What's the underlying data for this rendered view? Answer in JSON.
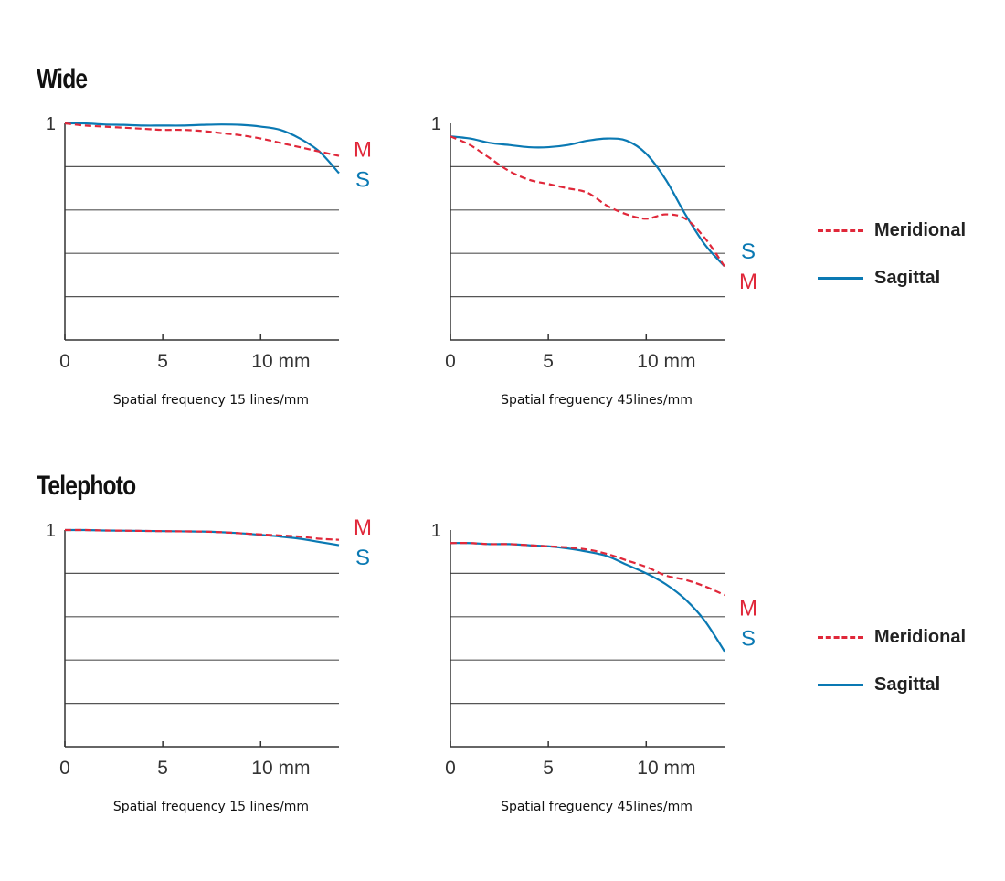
{
  "sections": [
    {
      "title": "Wide"
    },
    {
      "title": "Telephoto"
    }
  ],
  "legend": {
    "meridional": {
      "label": "Meridional",
      "color": "#e0283a",
      "style": "dashed"
    },
    "sagittal": {
      "label": "Sagittal",
      "color": "#0a79b3",
      "style": "solid"
    }
  },
  "chart_data": [
    {
      "type": "line",
      "group": "Wide",
      "caption": "Spatial frequency 15 lines/mm",
      "x_ticks": [
        "0",
        "5",
        "10 mm"
      ],
      "x_tick_values": [
        0,
        5,
        10
      ],
      "y_tick_label": "1",
      "xlim": [
        0,
        14
      ],
      "ylim": [
        0,
        1
      ],
      "grid_y": [
        0.2,
        0.4,
        0.6,
        0.8
      ],
      "series": [
        {
          "name": "M",
          "line": "dashed",
          "color": "#e0283a",
          "x": [
            0,
            1,
            2,
            3,
            4,
            5,
            6,
            7,
            8,
            9,
            10,
            11,
            12,
            13,
            14
          ],
          "y": [
            1.0,
            0.99,
            0.985,
            0.98,
            0.975,
            0.97,
            0.97,
            0.965,
            0.955,
            0.945,
            0.93,
            0.91,
            0.89,
            0.87,
            0.85
          ]
        },
        {
          "name": "S",
          "line": "solid",
          "color": "#0a79b3",
          "x": [
            0,
            1,
            2,
            3,
            4,
            5,
            6,
            7,
            8,
            9,
            10,
            11,
            12,
            13,
            14
          ],
          "y": [
            1.0,
            1.0,
            0.995,
            0.993,
            0.99,
            0.99,
            0.99,
            0.993,
            0.995,
            0.993,
            0.985,
            0.97,
            0.93,
            0.87,
            0.77
          ]
        }
      ],
      "end_labels": [
        {
          "text": "M",
          "color": "#e0283a"
        },
        {
          "text": "S",
          "color": "#0a79b3"
        }
      ]
    },
    {
      "type": "line",
      "group": "Wide",
      "caption": "Spatial freguency 45lines/mm",
      "x_ticks": [
        "0",
        "5",
        "10 mm"
      ],
      "x_tick_values": [
        0,
        5,
        10
      ],
      "y_tick_label": "1",
      "xlim": [
        0,
        14
      ],
      "ylim": [
        0,
        1
      ],
      "grid_y": [
        0.2,
        0.4,
        0.6,
        0.8
      ],
      "series": [
        {
          "name": "M",
          "line": "dashed",
          "color": "#e0283a",
          "x": [
            0,
            1,
            2,
            3,
            4,
            5,
            6,
            7,
            8,
            9,
            10,
            11,
            12,
            13,
            14
          ],
          "y": [
            0.94,
            0.9,
            0.84,
            0.78,
            0.74,
            0.72,
            0.7,
            0.68,
            0.62,
            0.58,
            0.56,
            0.58,
            0.56,
            0.47,
            0.34
          ]
        },
        {
          "name": "S",
          "line": "solid",
          "color": "#0a79b3",
          "x": [
            0,
            1,
            2,
            3,
            4,
            5,
            6,
            7,
            8,
            9,
            10,
            11,
            12,
            13,
            14
          ],
          "y": [
            0.94,
            0.93,
            0.91,
            0.9,
            0.89,
            0.89,
            0.9,
            0.92,
            0.93,
            0.92,
            0.86,
            0.74,
            0.58,
            0.44,
            0.34
          ]
        }
      ],
      "end_labels": [
        {
          "text": "S",
          "color": "#0a79b3"
        },
        {
          "text": "M",
          "color": "#e0283a"
        }
      ]
    },
    {
      "type": "line",
      "group": "Telephoto",
      "caption": "Spatial frequency 15 lines/mm",
      "x_ticks": [
        "0",
        "5",
        "10 mm"
      ],
      "x_tick_values": [
        0,
        5,
        10
      ],
      "y_tick_label": "1",
      "xlim": [
        0,
        14
      ],
      "ylim": [
        0,
        1
      ],
      "grid_y": [
        0.2,
        0.4,
        0.6,
        0.8
      ],
      "series": [
        {
          "name": "M",
          "line": "dashed",
          "color": "#e0283a",
          "x": [
            0,
            1,
            2,
            3,
            4,
            5,
            6,
            7,
            8,
            9,
            10,
            11,
            12,
            13,
            14
          ],
          "y": [
            1.0,
            1.0,
            0.998,
            0.997,
            0.996,
            0.995,
            0.994,
            0.993,
            0.99,
            0.985,
            0.98,
            0.975,
            0.97,
            0.96,
            0.955
          ]
        },
        {
          "name": "S",
          "line": "solid",
          "color": "#0a79b3",
          "x": [
            0,
            1,
            2,
            3,
            4,
            5,
            6,
            7,
            8,
            9,
            10,
            11,
            12,
            13,
            14
          ],
          "y": [
            1.0,
            1.0,
            0.998,
            0.997,
            0.996,
            0.995,
            0.994,
            0.993,
            0.99,
            0.985,
            0.978,
            0.97,
            0.96,
            0.945,
            0.93
          ]
        }
      ],
      "end_labels": [
        {
          "text": "M",
          "color": "#e0283a"
        },
        {
          "text": "S",
          "color": "#0a79b3"
        }
      ]
    },
    {
      "type": "line",
      "group": "Telephoto",
      "caption": "Spatial freguency 45lines/mm",
      "x_ticks": [
        "0",
        "5",
        "10 mm"
      ],
      "x_tick_values": [
        0,
        5,
        10
      ],
      "y_tick_label": "1",
      "xlim": [
        0,
        14
      ],
      "ylim": [
        0,
        1
      ],
      "grid_y": [
        0.2,
        0.4,
        0.6,
        0.8
      ],
      "series": [
        {
          "name": "M",
          "line": "dashed",
          "color": "#e0283a",
          "x": [
            0,
            1,
            2,
            3,
            4,
            5,
            6,
            7,
            8,
            9,
            10,
            11,
            12,
            13,
            14
          ],
          "y": [
            0.94,
            0.94,
            0.935,
            0.935,
            0.93,
            0.925,
            0.92,
            0.91,
            0.89,
            0.86,
            0.83,
            0.79,
            0.77,
            0.74,
            0.7
          ]
        },
        {
          "name": "S",
          "line": "solid",
          "color": "#0a79b3",
          "x": [
            0,
            1,
            2,
            3,
            4,
            5,
            6,
            7,
            8,
            9,
            10,
            11,
            12,
            13,
            14
          ],
          "y": [
            0.94,
            0.94,
            0.935,
            0.935,
            0.93,
            0.925,
            0.915,
            0.9,
            0.88,
            0.84,
            0.8,
            0.75,
            0.68,
            0.58,
            0.44
          ]
        }
      ],
      "end_labels": [
        {
          "text": "M",
          "color": "#e0283a"
        },
        {
          "text": "S",
          "color": "#0a79b3"
        }
      ]
    }
  ]
}
